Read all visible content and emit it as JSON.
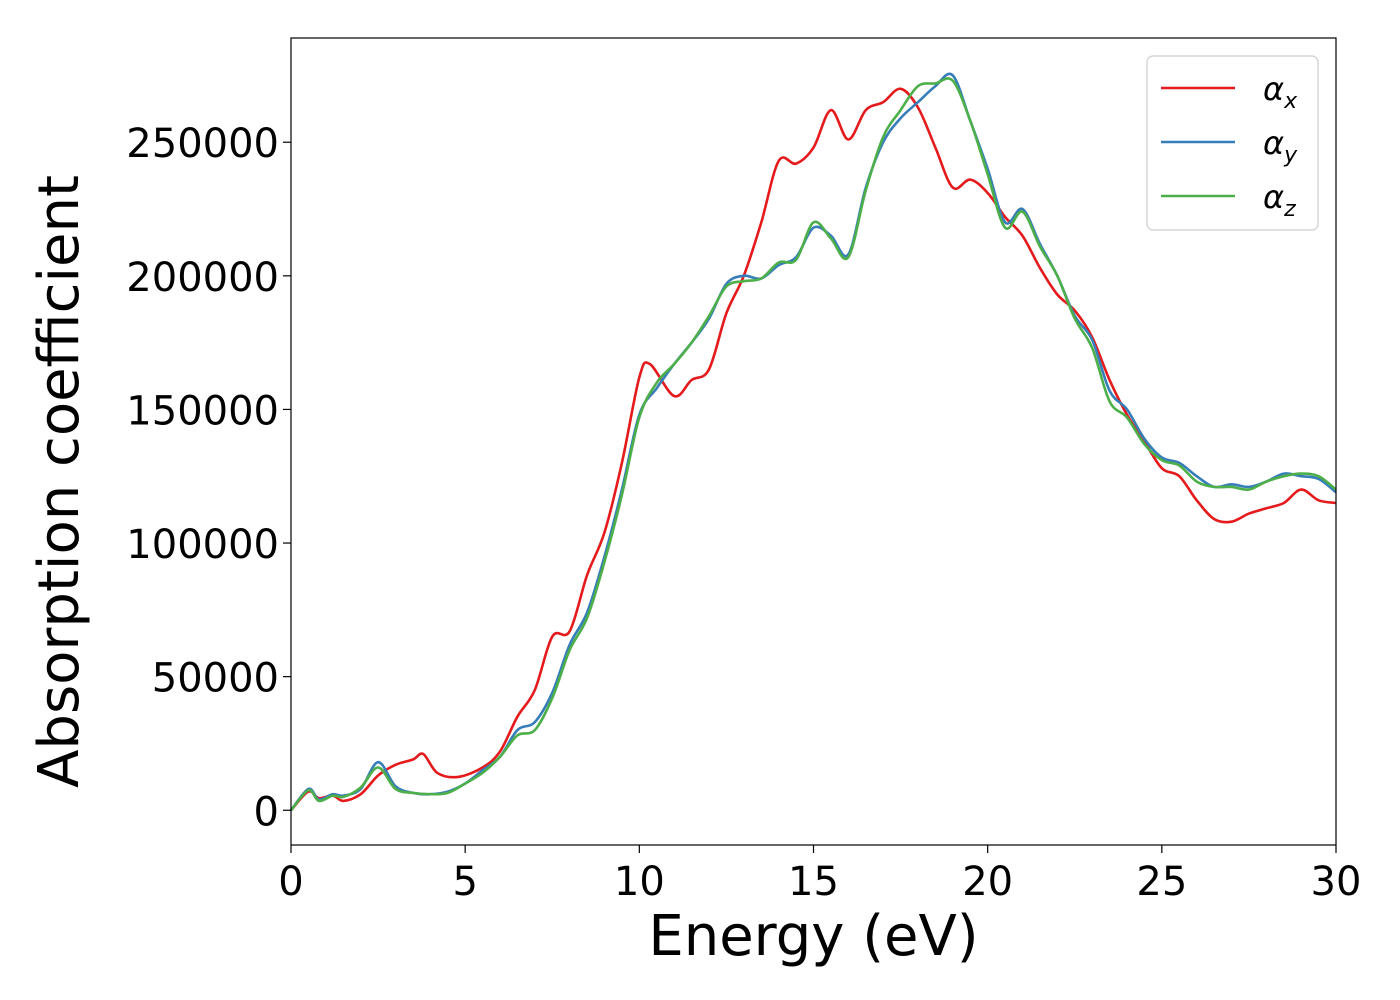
{
  "chart_data": {
    "type": "line",
    "title": "",
    "xlabel": "Energy (eV)",
    "ylabel": "Absorption coefficient",
    "xlim": [
      0,
      30
    ],
    "ylim": [
      -13000,
      289000
    ],
    "x_ticks": [
      0,
      5,
      10,
      15,
      20,
      25,
      30
    ],
    "y_ticks": [
      0,
      50000,
      100000,
      150000,
      200000,
      250000
    ],
    "grid": false,
    "legend_position": "top-right",
    "series": [
      {
        "name": "αx",
        "symbol": "α",
        "subscript": "x",
        "color": "#e41a1c",
        "points": [
          [
            0,
            0
          ],
          [
            0.5,
            7000
          ],
          [
            0.8,
            4500
          ],
          [
            1.2,
            5500
          ],
          [
            1.5,
            3500
          ],
          [
            2.0,
            6000
          ],
          [
            2.5,
            13000
          ],
          [
            3.0,
            17000
          ],
          [
            3.5,
            19000
          ],
          [
            3.8,
            21000
          ],
          [
            4.2,
            14000
          ],
          [
            4.8,
            12500
          ],
          [
            5.5,
            16000
          ],
          [
            6.0,
            22000
          ],
          [
            6.5,
            35000
          ],
          [
            7.0,
            45000
          ],
          [
            7.5,
            65000
          ],
          [
            8.0,
            67000
          ],
          [
            8.5,
            88000
          ],
          [
            9.0,
            104000
          ],
          [
            9.5,
            130000
          ],
          [
            10.0,
            162000
          ],
          [
            10.3,
            167000
          ],
          [
            11.0,
            155000
          ],
          [
            11.5,
            161000
          ],
          [
            12.0,
            165000
          ],
          [
            12.5,
            186000
          ],
          [
            13.0,
            200000
          ],
          [
            13.5,
            220000
          ],
          [
            14.0,
            243000
          ],
          [
            14.5,
            242000
          ],
          [
            15.0,
            248000
          ],
          [
            15.5,
            262000
          ],
          [
            16.0,
            251000
          ],
          [
            16.5,
            262000
          ],
          [
            17.0,
            265000
          ],
          [
            17.5,
            270000
          ],
          [
            18.0,
            263000
          ],
          [
            18.5,
            248000
          ],
          [
            19.0,
            233000
          ],
          [
            19.5,
            236000
          ],
          [
            20.0,
            231000
          ],
          [
            20.5,
            222000
          ],
          [
            21.0,
            215000
          ],
          [
            21.5,
            203000
          ],
          [
            22.0,
            193000
          ],
          [
            22.5,
            187000
          ],
          [
            23.0,
            177000
          ],
          [
            23.5,
            161000
          ],
          [
            24.0,
            148000
          ],
          [
            24.5,
            138000
          ],
          [
            25.0,
            128000
          ],
          [
            25.5,
            125000
          ],
          [
            26.0,
            116000
          ],
          [
            26.5,
            109000
          ],
          [
            27.0,
            108000
          ],
          [
            27.5,
            111000
          ],
          [
            28.0,
            113000
          ],
          [
            28.5,
            115000
          ],
          [
            29.0,
            120000
          ],
          [
            29.5,
            116000
          ],
          [
            30.0,
            115000
          ]
        ]
      },
      {
        "name": "αy",
        "symbol": "α",
        "subscript": "y",
        "color": "#377eb8",
        "points": [
          [
            0,
            0
          ],
          [
            0.5,
            8000
          ],
          [
            0.8,
            4000
          ],
          [
            1.2,
            6000
          ],
          [
            1.5,
            5500
          ],
          [
            2.0,
            8000
          ],
          [
            2.5,
            18000
          ],
          [
            3.0,
            9000
          ],
          [
            3.5,
            6500
          ],
          [
            4.0,
            6000
          ],
          [
            4.5,
            7000
          ],
          [
            5.0,
            10000
          ],
          [
            5.5,
            15000
          ],
          [
            6.0,
            20000
          ],
          [
            6.5,
            30000
          ],
          [
            7.0,
            33000
          ],
          [
            7.5,
            44000
          ],
          [
            8.0,
            62000
          ],
          [
            8.5,
            74000
          ],
          [
            9.0,
            95000
          ],
          [
            9.5,
            120000
          ],
          [
            10.0,
            148000
          ],
          [
            10.5,
            158000
          ],
          [
            11.0,
            167000
          ],
          [
            11.5,
            175000
          ],
          [
            12.0,
            184000
          ],
          [
            12.5,
            197000
          ],
          [
            13.0,
            200000
          ],
          [
            13.5,
            199000
          ],
          [
            14.0,
            204000
          ],
          [
            14.5,
            207000
          ],
          [
            15.0,
            218000
          ],
          [
            15.5,
            215000
          ],
          [
            16.0,
            208000
          ],
          [
            16.5,
            233000
          ],
          [
            17.0,
            250000
          ],
          [
            17.5,
            259000
          ],
          [
            18.0,
            265000
          ],
          [
            18.5,
            271000
          ],
          [
            19.0,
            275000
          ],
          [
            19.5,
            258000
          ],
          [
            20.0,
            240000
          ],
          [
            20.5,
            220000
          ],
          [
            21.0,
            225000
          ],
          [
            21.5,
            212000
          ],
          [
            22.0,
            200000
          ],
          [
            22.5,
            185000
          ],
          [
            23.0,
            176000
          ],
          [
            23.5,
            157000
          ],
          [
            24.0,
            150000
          ],
          [
            24.5,
            139000
          ],
          [
            25.0,
            132000
          ],
          [
            25.5,
            130000
          ],
          [
            26.0,
            125000
          ],
          [
            26.5,
            121000
          ],
          [
            27.0,
            122000
          ],
          [
            27.5,
            121000
          ],
          [
            28.0,
            123000
          ],
          [
            28.5,
            126000
          ],
          [
            29.0,
            125000
          ],
          [
            29.5,
            124000
          ],
          [
            30.0,
            119000
          ]
        ]
      },
      {
        "name": "αz",
        "symbol": "α",
        "subscript": "z",
        "color": "#4daf4a",
        "points": [
          [
            0,
            0
          ],
          [
            0.5,
            7500
          ],
          [
            0.8,
            3500
          ],
          [
            1.2,
            5500
          ],
          [
            1.5,
            5000
          ],
          [
            2.0,
            8500
          ],
          [
            2.5,
            16000
          ],
          [
            3.0,
            8000
          ],
          [
            3.5,
            6500
          ],
          [
            4.0,
            6000
          ],
          [
            4.5,
            6500
          ],
          [
            5.0,
            10000
          ],
          [
            5.5,
            14000
          ],
          [
            6.0,
            20000
          ],
          [
            6.5,
            28000
          ],
          [
            7.0,
            30000
          ],
          [
            7.5,
            42000
          ],
          [
            8.0,
            60000
          ],
          [
            8.5,
            72000
          ],
          [
            9.0,
            93000
          ],
          [
            9.5,
            118000
          ],
          [
            10.0,
            147000
          ],
          [
            10.5,
            160000
          ],
          [
            11.0,
            167000
          ],
          [
            11.5,
            175000
          ],
          [
            12.0,
            185000
          ],
          [
            12.5,
            196000
          ],
          [
            13.0,
            198000
          ],
          [
            13.5,
            199000
          ],
          [
            14.0,
            205000
          ],
          [
            14.5,
            206000
          ],
          [
            15.0,
            220000
          ],
          [
            15.5,
            214000
          ],
          [
            16.0,
            207000
          ],
          [
            16.5,
            232000
          ],
          [
            17.0,
            252000
          ],
          [
            17.5,
            262000
          ],
          [
            18.0,
            271000
          ],
          [
            18.5,
            272000
          ],
          [
            19.0,
            273000
          ],
          [
            19.5,
            258000
          ],
          [
            20.0,
            238000
          ],
          [
            20.5,
            218000
          ],
          [
            21.0,
            224000
          ],
          [
            21.5,
            211000
          ],
          [
            22.0,
            200000
          ],
          [
            22.5,
            184000
          ],
          [
            23.0,
            173000
          ],
          [
            23.5,
            153000
          ],
          [
            24.0,
            147000
          ],
          [
            24.5,
            137000
          ],
          [
            25.0,
            131000
          ],
          [
            25.5,
            129000
          ],
          [
            26.0,
            123000
          ],
          [
            26.5,
            121000
          ],
          [
            27.0,
            121000
          ],
          [
            27.5,
            120000
          ],
          [
            28.0,
            123000
          ],
          [
            28.5,
            125000
          ],
          [
            29.0,
            126000
          ],
          [
            29.5,
            125000
          ],
          [
            30.0,
            120000
          ]
        ]
      }
    ]
  }
}
